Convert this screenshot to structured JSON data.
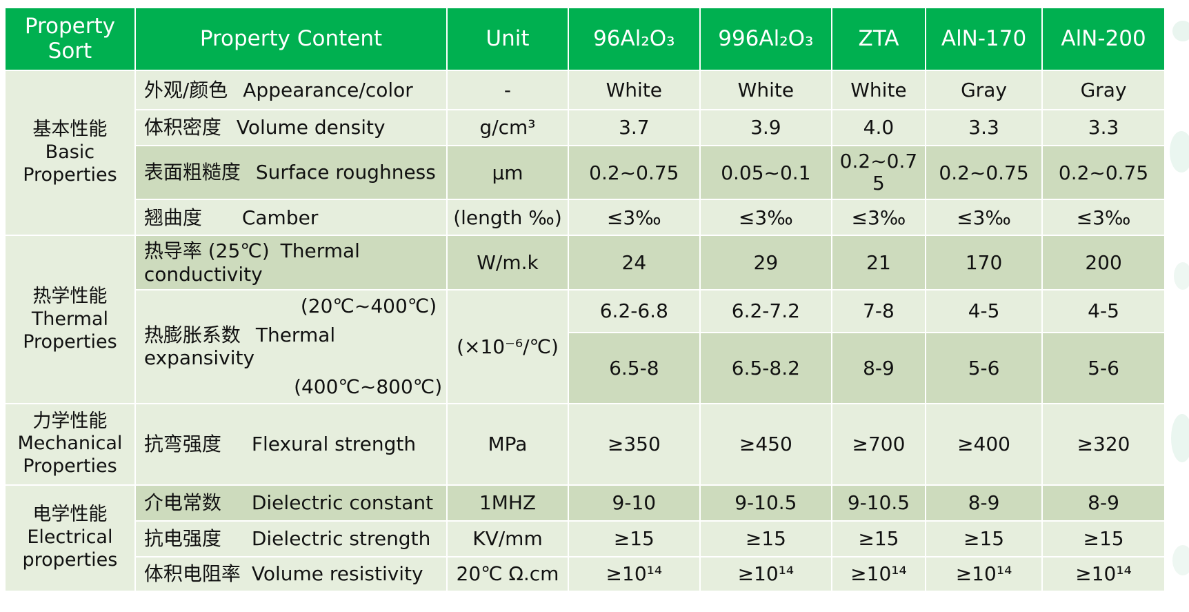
{
  "header": {
    "property_sort": "Property Sort",
    "property_content": "Property Content",
    "unit": "Unit",
    "col_96al2o3": "96Al₂O₃",
    "col_996al2o3": "996Al₂O₃",
    "col_zta": "ZTA",
    "col_aln170": "AlN-170",
    "col_aln200": "AlN-200"
  },
  "groups": {
    "basic": {
      "zh": "基本性能",
      "en": "Basic Properties"
    },
    "thermal": {
      "zh": "热学性能",
      "en": "Thermal Properties"
    },
    "mechanical": {
      "zh": "力学性能",
      "en": "Mechanical Properties"
    },
    "electrical": {
      "zh": "电学性能",
      "en": "Electrical properties"
    }
  },
  "rows": {
    "appearance": {
      "zh": "外观/颜色",
      "en": "Appearance/color",
      "unit": "-",
      "v": [
        "White",
        "White",
        "White",
        "Gray",
        "Gray"
      ]
    },
    "density": {
      "zh": "体积密度",
      "en": "Volume density",
      "unit": "g/cm³",
      "v": [
        "3.7",
        "3.9",
        "4.0",
        "3.3",
        "3.3"
      ]
    },
    "roughness": {
      "zh": "表面粗糙度",
      "en": "Surface roughness",
      "unit": "μm",
      "v": [
        "0.2~0.75",
        "0.05~0.1",
        "0.2~0.75",
        "0.2~0.75",
        "0.2~0.75"
      ]
    },
    "camber": {
      "zh": "翘曲度",
      "en": "Camber",
      "unit": "(length ‰)",
      "v": [
        "≤3‰",
        "≤3‰",
        "≤3‰",
        "≤3‰",
        "≤3‰"
      ]
    },
    "conductivity": {
      "zh": "热导率 (25℃)",
      "en": "Thermal conductivity",
      "unit": "W/m.k",
      "v": [
        "24",
        "29",
        "21",
        "170",
        "200"
      ]
    },
    "expansion": {
      "zh": "热膨胀系数",
      "en": "Thermal expansivity",
      "range1": "(20℃~400℃)",
      "range2": "(400℃~800℃)",
      "unit": "(×10⁻⁶/℃)",
      "v1": [
        "6.2-6.8",
        "6.2-7.2",
        "7-8",
        "4-5",
        "4-5"
      ],
      "v2": [
        "6.5-8",
        "6.5-8.2",
        "8-9",
        "5-6",
        "5-6"
      ]
    },
    "flexural": {
      "zh": "抗弯强度",
      "en": "Flexural strength",
      "unit": "MPa",
      "v": [
        "≥350",
        "≥450",
        "≥700",
        "≥400",
        "≥320"
      ]
    },
    "dielectric_constant": {
      "zh": "介电常数",
      "en": "Dielectric constant",
      "unit": "1MHZ",
      "v": [
        "9-10",
        "9-10.5",
        "9-10.5",
        "8-9",
        "8-9"
      ]
    },
    "dielectric_strength": {
      "zh": "抗电强度",
      "en": "Dielectric strength",
      "unit": "KV/mm",
      "v": [
        "≥15",
        "≥15",
        "≥15",
        "≥15",
        "≥15"
      ]
    },
    "resistivity": {
      "zh": "体积电阻率",
      "en": "Volume resistivity",
      "unit": "20℃ Ω.cm",
      "v": [
        "≥10¹⁴",
        "≥10¹⁴",
        "≥10¹⁴",
        "≥10¹⁴",
        "≥10¹⁴"
      ]
    }
  },
  "colors": {
    "header_bg": "#00b050",
    "row_light": "#e6eedd",
    "row_dark": "#cddbbd"
  }
}
